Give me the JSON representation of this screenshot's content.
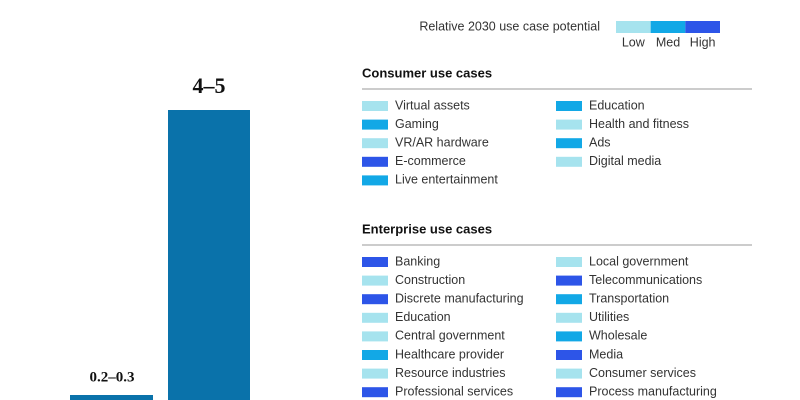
{
  "bars": [
    {
      "label": "0.2–0.3"
    },
    {
      "label": "4–5"
    }
  ],
  "legend": {
    "title": "Relative 2030 use case potential",
    "levels": [
      {
        "label": "Low",
        "color": "#a6e3ee"
      },
      {
        "label": "Med",
        "color": "#12a8e6"
      },
      {
        "label": "High",
        "color": "#2d55e8"
      }
    ]
  },
  "sections": [
    {
      "title": "Consumer use cases",
      "columns": [
        [
          {
            "name": "Virtual assets",
            "level": "Low"
          },
          {
            "name": "Gaming",
            "level": "Med"
          },
          {
            "name": "VR/AR hardware",
            "level": "Low"
          },
          {
            "name": "E-commerce",
            "level": "High"
          },
          {
            "name": "Live entertainment",
            "level": "Med"
          }
        ],
        [
          {
            "name": "Education",
            "level": "Med"
          },
          {
            "name": "Health and fitness",
            "level": "Low"
          },
          {
            "name": "Ads",
            "level": "Med"
          },
          {
            "name": "Digital media",
            "level": "Low"
          }
        ]
      ]
    },
    {
      "title": "Enterprise use cases",
      "columns": [
        [
          {
            "name": "Banking",
            "level": "High"
          },
          {
            "name": "Construction",
            "level": "Low"
          },
          {
            "name": "Discrete manufacturing",
            "level": "High"
          },
          {
            "name": "Education",
            "level": "Low"
          },
          {
            "name": "Central government",
            "level": "Low"
          },
          {
            "name": "Healthcare provider",
            "level": "Med"
          },
          {
            "name": "Resource industries",
            "level": "Low"
          },
          {
            "name": "Professional services",
            "level": "High"
          }
        ],
        [
          {
            "name": "Local government",
            "level": "Low"
          },
          {
            "name": "Telecommunications",
            "level": "High"
          },
          {
            "name": "Transportation",
            "level": "Med"
          },
          {
            "name": "Utilities",
            "level": "Low"
          },
          {
            "name": "Wholesale",
            "level": "Med"
          },
          {
            "name": "Media",
            "level": "High"
          },
          {
            "name": "Consumer services",
            "level": "Low"
          },
          {
            "name": "Process manufacturing",
            "level": "High"
          }
        ]
      ]
    }
  ]
}
